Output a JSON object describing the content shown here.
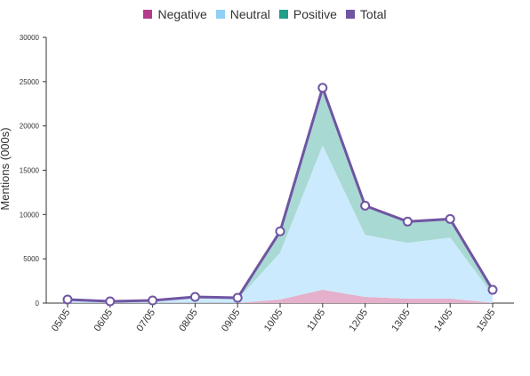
{
  "chart_data": {
    "type": "area",
    "ylabel": "Mentions (000s)",
    "xlabel": "",
    "ylim": [
      0,
      30000
    ],
    "yticks": [
      0,
      5000,
      10000,
      15000,
      20000,
      25000,
      30000
    ],
    "categories": [
      "05/05",
      "06/05",
      "07/05",
      "08/05",
      "09/05",
      "10/05",
      "11/05",
      "12/05",
      "13/05",
      "14/05",
      "15/05"
    ],
    "legend_position": "top-center",
    "grid": false,
    "series": [
      {
        "name": "Negative",
        "color": "#b33c8b",
        "fill": "#e4b0cb",
        "values": [
          20,
          10,
          10,
          20,
          20,
          400,
          1500,
          700,
          500,
          500,
          50
        ]
      },
      {
        "name": "Neutral",
        "color": "#8fd0f5",
        "fill": "#cceafd",
        "values": [
          300,
          150,
          200,
          500,
          400,
          5300,
          16300,
          7000,
          6300,
          6900,
          900
        ]
      },
      {
        "name": "Positive",
        "color": "#1f9e89",
        "fill": "#a8d9d3",
        "values": [
          80,
          40,
          90,
          180,
          180,
          2400,
          6500,
          3300,
          2400,
          2100,
          550
        ]
      },
      {
        "name": "Total",
        "color": "#7055a2",
        "values": [
          400,
          200,
          300,
          700,
          600,
          8100,
          24300,
          11000,
          9200,
          9500,
          1500
        ]
      }
    ]
  }
}
